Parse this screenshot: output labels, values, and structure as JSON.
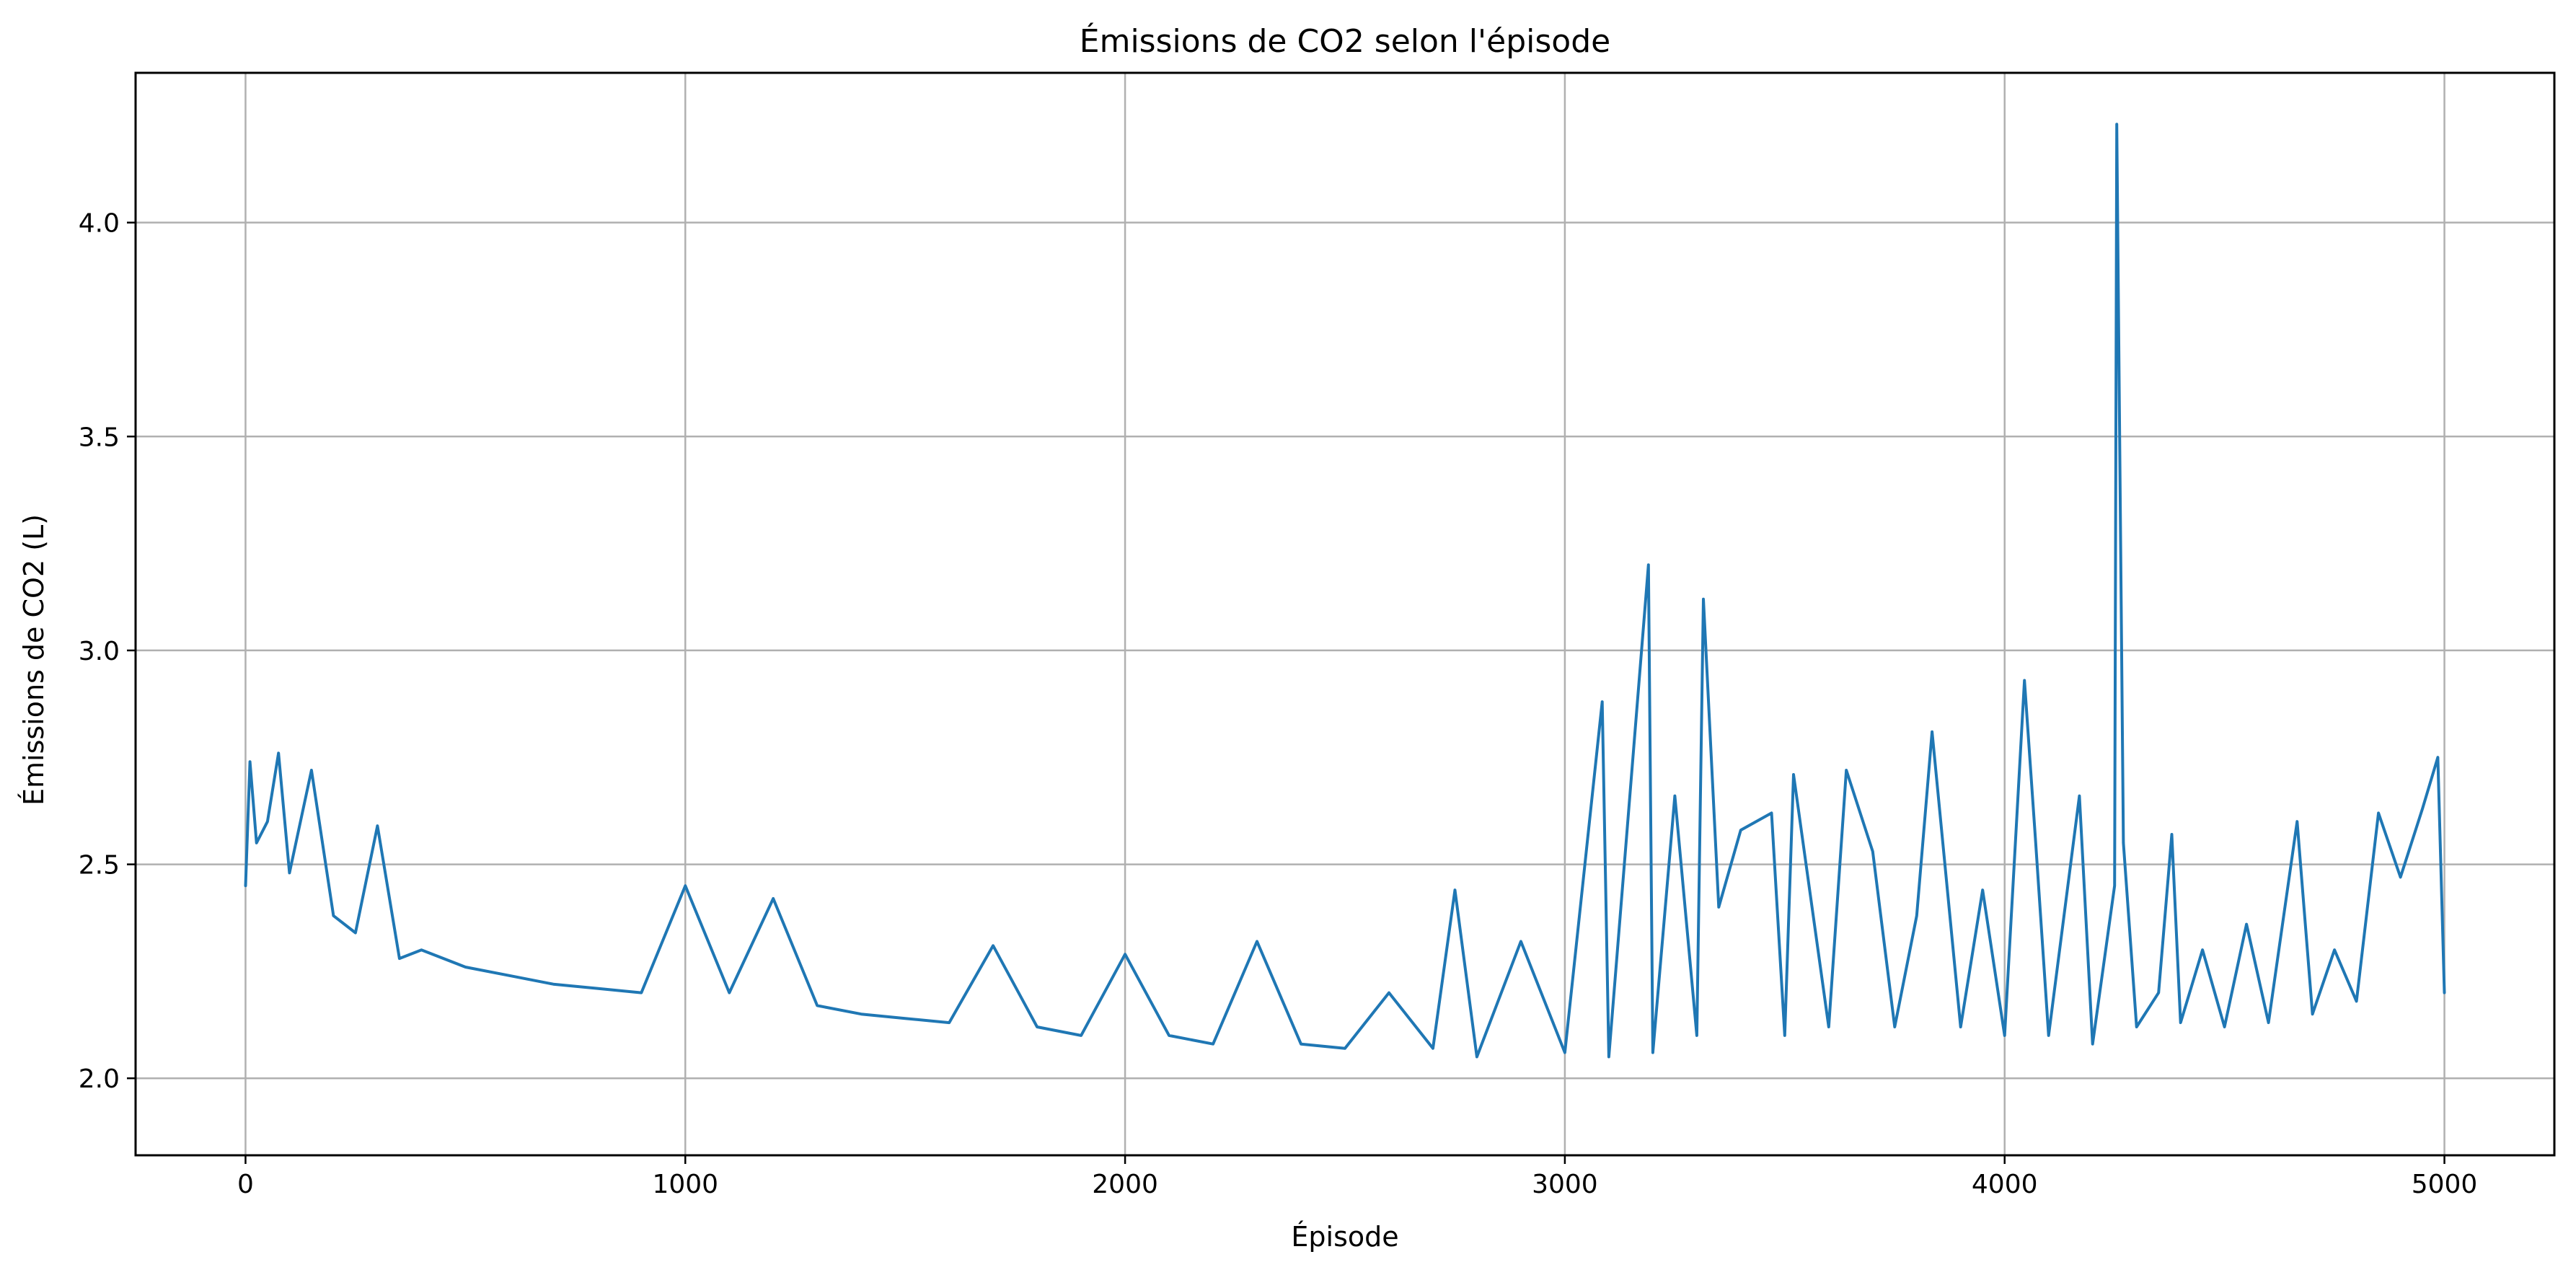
{
  "chart_data": {
    "type": "line",
    "title": "Émissions de CO2 selon l'épisode",
    "xlabel": "Épisode",
    "ylabel": "Émissions de CO2 (L)",
    "xlim": [
      -250,
      5250
    ],
    "ylim": [
      1.82,
      4.35
    ],
    "xticks": [
      0,
      1000,
      2000,
      3000,
      4000,
      5000
    ],
    "xtick_labels": [
      "0",
      "1000",
      "2000",
      "3000",
      "4000",
      "5000"
    ],
    "yticks": [
      2.0,
      2.5,
      3.0,
      3.5,
      4.0
    ],
    "ytick_labels": [
      "2.0",
      "2.5",
      "3.0",
      "3.5",
      "4.0"
    ],
    "grid": true,
    "legend": "none",
    "series_color": "#1f77b4",
    "grid_color": "#b0b0b0",
    "series": [
      {
        "x": [
          0,
          10,
          25,
          50,
          75,
          100,
          150,
          200,
          250,
          300,
          350,
          400,
          500,
          600,
          700,
          800,
          900,
          1000,
          1100,
          1200,
          1300,
          1400,
          1500,
          1600,
          1700,
          1800,
          1900,
          2000,
          2100,
          2200,
          2300,
          2400,
          2500,
          2600,
          2700,
          2750,
          2800,
          2900,
          3000,
          3085,
          3100,
          3190,
          3200,
          3250,
          3300,
          3315,
          3350,
          3400,
          3470,
          3500,
          3520,
          3600,
          3640,
          3700,
          3750,
          3800,
          3835,
          3900,
          3950,
          4000,
          4045,
          4070,
          4100,
          4170,
          4200,
          4250,
          4255,
          4270,
          4300,
          4350,
          4380,
          4400,
          4450,
          4500,
          4550,
          4600,
          4665,
          4700,
          4750,
          4800,
          4850,
          4900,
          4950,
          4985,
          5000
        ],
        "y": [
          2.45,
          2.74,
          2.55,
          2.6,
          2.76,
          2.48,
          2.72,
          2.38,
          2.34,
          2.59,
          2.28,
          2.3,
          2.26,
          2.24,
          2.22,
          2.21,
          2.2,
          2.45,
          2.2,
          2.42,
          2.17,
          2.15,
          2.14,
          2.13,
          2.31,
          2.12,
          2.1,
          2.29,
          2.1,
          2.08,
          2.32,
          2.08,
          2.07,
          2.2,
          2.07,
          2.44,
          2.05,
          2.32,
          2.06,
          2.88,
          2.05,
          3.2,
          2.06,
          2.66,
          2.1,
          3.12,
          2.4,
          2.58,
          2.62,
          2.1,
          2.71,
          2.12,
          2.72,
          2.53,
          2.12,
          2.38,
          2.81,
          2.12,
          2.44,
          2.1,
          2.93,
          2.56,
          2.1,
          2.66,
          2.08,
          2.45,
          4.23,
          2.55,
          2.12,
          2.2,
          2.57,
          2.13,
          2.3,
          2.12,
          2.36,
          2.13,
          2.6,
          2.15,
          2.3,
          2.18,
          2.62,
          2.47,
          2.63,
          2.75,
          2.2
        ]
      }
    ]
  }
}
